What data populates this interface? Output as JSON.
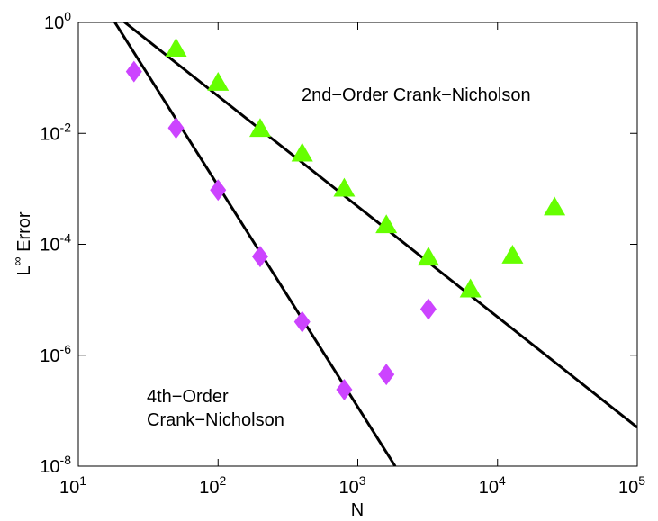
{
  "chart_data": {
    "type": "scatter",
    "title": "",
    "xlabel": "N",
    "ylabel_base": "L",
    "ylabel_sup": "∞",
    "ylabel_rest": " Error",
    "xscale": "log",
    "yscale": "log",
    "xlim": [
      10,
      100000
    ],
    "ylim": [
      1e-08,
      1
    ],
    "grid": false,
    "x_tick_values": [
      10,
      100,
      1000,
      10000,
      100000
    ],
    "x_tick_base": "10",
    "x_tick_exps": [
      "1",
      "2",
      "3",
      "4",
      "5"
    ],
    "y_tick_values": [
      1e-08,
      1e-06,
      0.0001,
      0.01,
      1
    ],
    "y_tick_base": "10",
    "y_tick_exps": [
      "-8",
      "-6",
      "-4",
      "-2",
      "0"
    ],
    "colors": {
      "green": "#66ff00",
      "purple": "#cc44ff",
      "line": "#000000"
    },
    "series": [
      {
        "name": "2nd-Order Crank-Nicholson",
        "marker": "triangle",
        "color": "#66ff00",
        "x": [
          50,
          100,
          200,
          400,
          800,
          1600,
          3200,
          6400,
          12800,
          25600
        ],
        "y": [
          0.35,
          0.085,
          0.0125,
          0.0045,
          0.00105,
          0.00023,
          6e-05,
          1.6e-05,
          6.5e-05,
          0.00048
        ]
      },
      {
        "name": "4th-Order Crank-Nicholson",
        "marker": "diamond",
        "color": "#cc44ff",
        "x": [
          25,
          50,
          100,
          200,
          400,
          800,
          1600,
          3200
        ],
        "y": [
          0.13,
          0.0125,
          0.00095,
          6e-05,
          4e-06,
          2.4e-07,
          4.5e-07,
          6.8e-06
        ]
      }
    ],
    "fit_lines": [
      {
        "name": "2nd-order fit",
        "x": [
          16.5,
          100000
        ],
        "y": [
          1.7,
          5e-08
        ]
      },
      {
        "name": "4th-order fit",
        "x": [
          16,
          1850
        ],
        "y": [
          1.7,
          1e-08
        ]
      }
    ],
    "annotations": [
      {
        "name": "annotation-2nd-order",
        "lines": [
          "2nd−Order Crank−Nicholson"
        ]
      },
      {
        "name": "annotation-4th-order",
        "lines": [
          "4th−Order",
          "Crank−Nicholson"
        ]
      }
    ]
  }
}
